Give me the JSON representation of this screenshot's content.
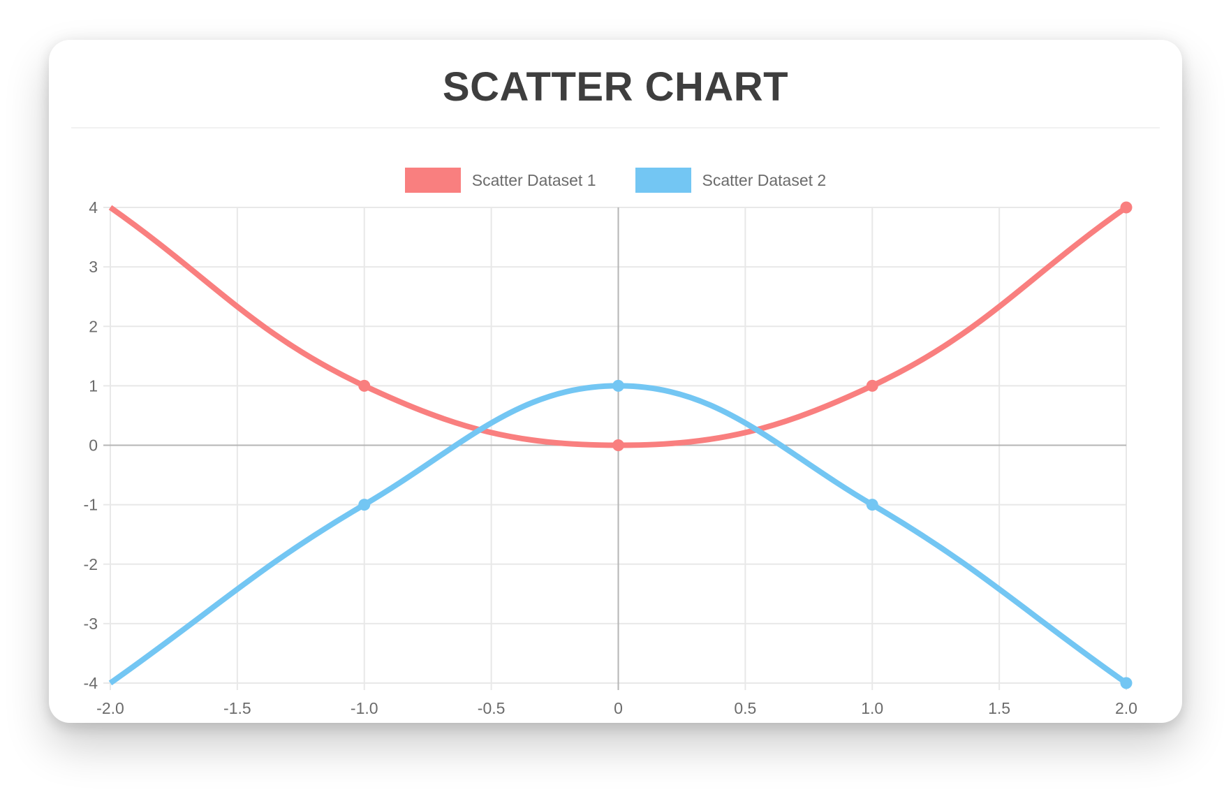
{
  "page": {
    "background": "#ffffff"
  },
  "chart_data": {
    "type": "scatter",
    "title": "SCATTER CHART",
    "xlabel": "",
    "ylabel": "",
    "xlim": [
      -2,
      2
    ],
    "ylim": [
      -4,
      4
    ],
    "grid": true,
    "legend_position": "top",
    "line_tension": 0.4,
    "x_ticks": {
      "values": [
        -2,
        -1.5,
        -1,
        -0.5,
        0,
        0.5,
        1,
        1.5,
        2
      ],
      "labels": [
        "-2.0",
        "-1.5",
        "-1.0",
        "-0.5",
        "0",
        "0.5",
        "1.0",
        "1.5",
        "2.0"
      ]
    },
    "y_ticks": {
      "values": [
        4,
        3,
        2,
        1,
        0,
        -1,
        -2,
        -3,
        -4
      ],
      "labels": [
        "4",
        "3",
        "2",
        "1",
        "0",
        "-1",
        "-2",
        "-3",
        "-4"
      ]
    },
    "series": [
      {
        "name": "Scatter Dataset 1",
        "color": "#f97f7f",
        "points": [
          {
            "x": -2,
            "y": 4
          },
          {
            "x": -1,
            "y": 1
          },
          {
            "x": 0,
            "y": 0
          },
          {
            "x": 1,
            "y": 1
          },
          {
            "x": 2,
            "y": 4
          }
        ]
      },
      {
        "name": "Scatter Dataset 2",
        "color": "#73c6f3",
        "points": [
          {
            "x": -2,
            "y": -4
          },
          {
            "x": -1,
            "y": -1
          },
          {
            "x": 0,
            "y": 1
          },
          {
            "x": 1,
            "y": -1
          },
          {
            "x": 2,
            "y": -4
          }
        ]
      }
    ],
    "styles": {
      "grid_color": "#e8e8e8",
      "zero_line_color": "#b5b5b5",
      "tick_text_color": "#6b6b6b",
      "title_color": "#3e3e3e",
      "divider_color": "#f1f1f1"
    }
  }
}
